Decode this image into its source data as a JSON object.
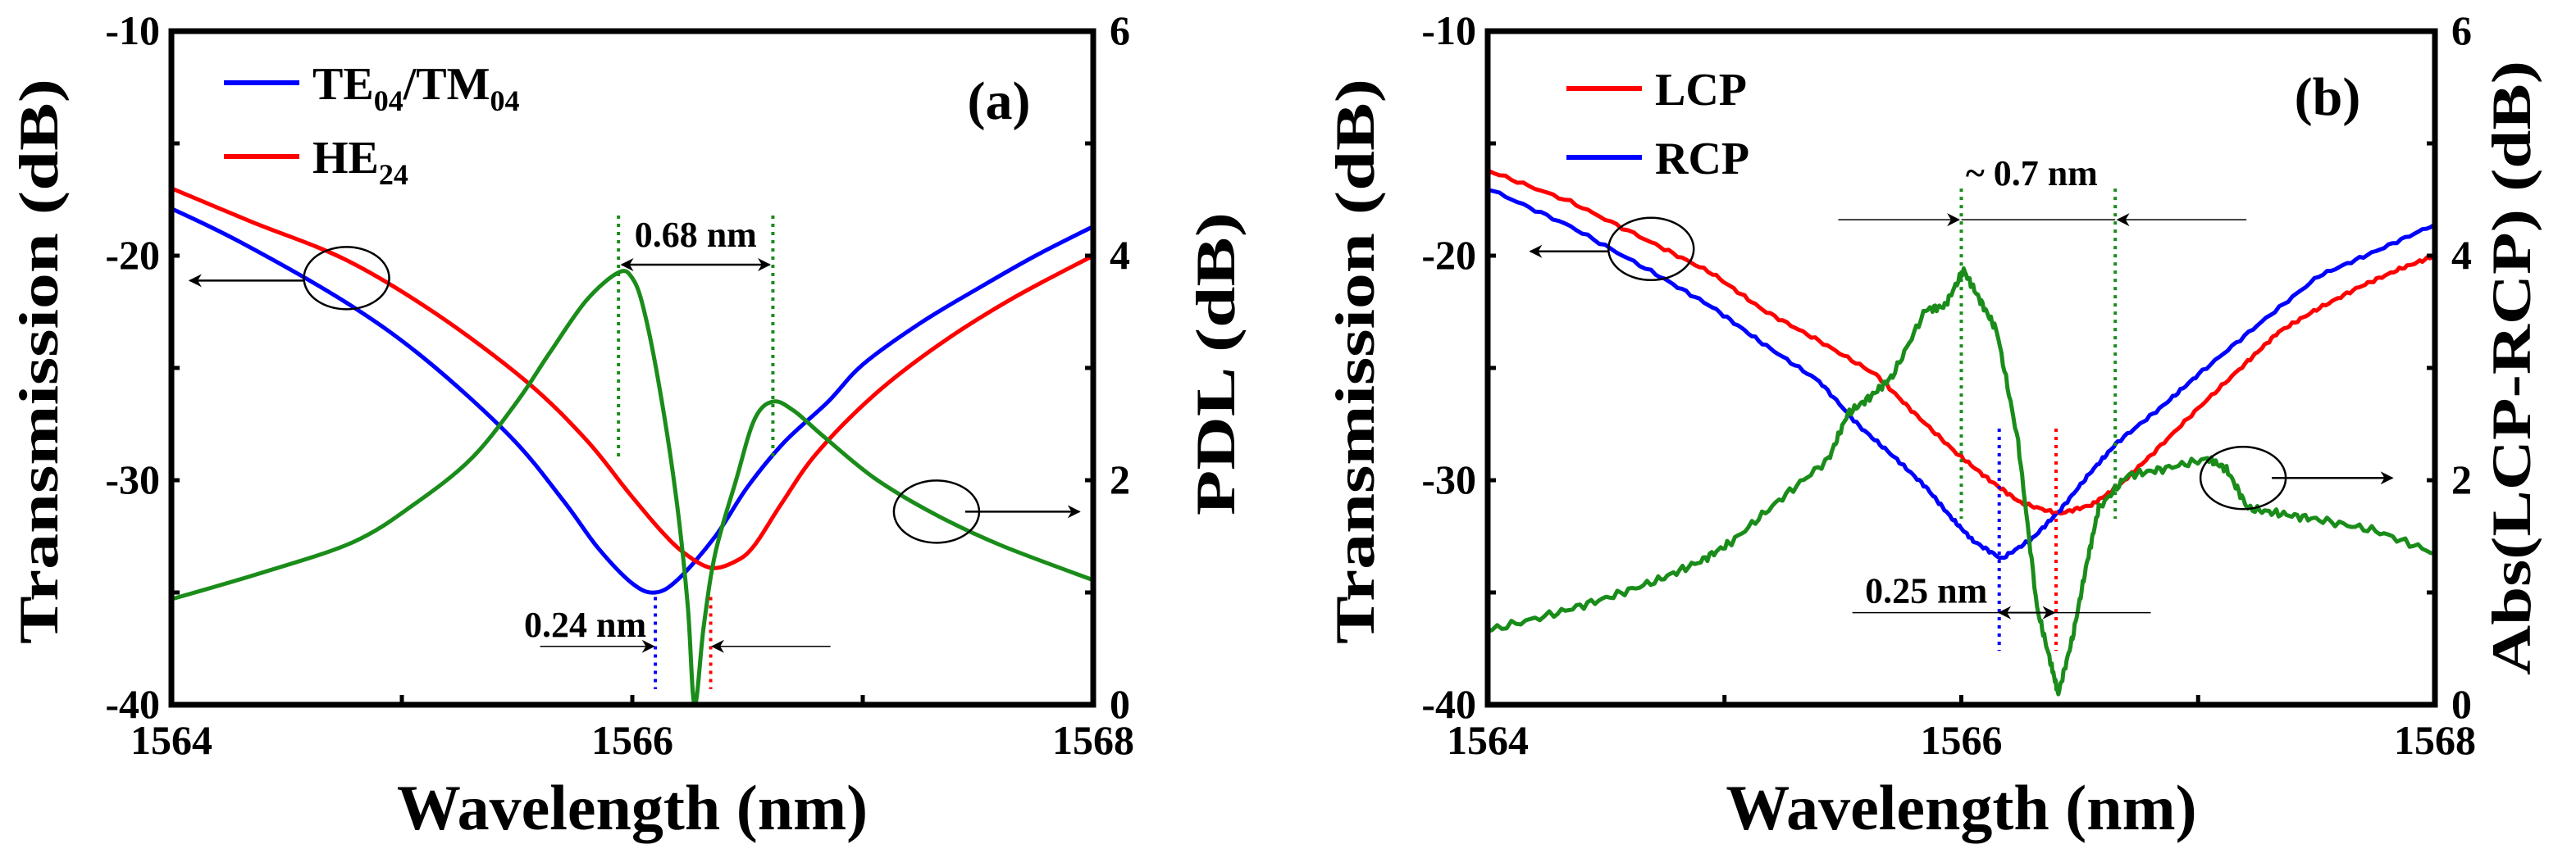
{
  "chart_data": [
    {
      "type": "line",
      "panel_label": "(a)",
      "xlabel": "Wavelength (nm)",
      "ylabel": "Transmission  (dB)",
      "y2label": "PDL  (dB)",
      "xlim": [
        1564,
        1568
      ],
      "ylim": [
        -40,
        -10
      ],
      "y2lim": [
        0,
        6
      ],
      "xticks": [
        1564,
        1566,
        1568
      ],
      "yticks": [
        -40,
        -30,
        -20,
        -10
      ],
      "y2ticks": [
        0,
        2,
        4,
        6
      ],
      "legend_position": "top-left",
      "series": [
        {
          "name_parts": [
            {
              "t": "TE"
            },
            {
              "t": "04",
              "sub": true
            },
            {
              "t": "/TM"
            },
            {
              "t": "04",
              "sub": true
            }
          ],
          "color": "#0000ff",
          "axis": "left",
          "x": [
            1564,
            1564.3,
            1564.76,
            1565.1,
            1565.47,
            1565.7,
            1565.85,
            1566.0,
            1566.1,
            1566.2,
            1566.36,
            1566.5,
            1566.66,
            1566.85,
            1567.0,
            1567.25,
            1567.51,
            1567.75,
            1568
          ],
          "y": [
            -17.9,
            -19.4,
            -22.1,
            -24.6,
            -28.05,
            -30.9,
            -33.0,
            -34.6,
            -35.0,
            -34.4,
            -32.5,
            -30.3,
            -28.3,
            -26.5,
            -24.85,
            -23.0,
            -21.4,
            -20.0,
            -18.7
          ]
        },
        {
          "name_parts": [
            {
              "t": "HE"
            },
            {
              "t": "24",
              "sub": true
            }
          ],
          "color": "#ff0000",
          "axis": "left",
          "x": [
            1564,
            1564.35,
            1564.76,
            1565.15,
            1565.54,
            1565.8,
            1565.98,
            1566.12,
            1566.22,
            1566.34,
            1566.45,
            1566.53,
            1566.65,
            1566.8,
            1567.05,
            1567.34,
            1567.65,
            1568
          ],
          "y": [
            -17.0,
            -18.5,
            -20.2,
            -22.6,
            -25.6,
            -28.2,
            -30.5,
            -32.2,
            -33.2,
            -33.9,
            -33.6,
            -32.9,
            -31.0,
            -28.8,
            -26.2,
            -23.9,
            -21.9,
            -20.0
          ]
        },
        {
          "name": "PDL",
          "color": "#1a8c1a",
          "axis": "right",
          "x": [
            1564,
            1564.4,
            1564.79,
            1565.05,
            1565.3,
            1565.5,
            1565.64,
            1565.8,
            1565.94,
            1566.0,
            1566.05,
            1566.12,
            1566.19,
            1566.24,
            1566.27,
            1566.31,
            1566.36,
            1566.45,
            1566.53,
            1566.61,
            1566.7,
            1566.83,
            1567.05,
            1567.31,
            1567.6,
            1568
          ],
          "y": [
            0.94,
            1.18,
            1.45,
            1.78,
            2.19,
            2.7,
            3.13,
            3.6,
            3.85,
            3.8,
            3.52,
            2.8,
            1.85,
            0.9,
            0.0,
            0.7,
            1.35,
            2.0,
            2.54,
            2.7,
            2.62,
            2.39,
            2.02,
            1.7,
            1.42,
            1.11
          ]
        }
      ],
      "annotations": [
        {
          "text": "0.68 nm",
          "type": "width",
          "x1": 1565.94,
          "x2": 1566.61,
          "y": -20.4,
          "color": "#1a8c1a"
        },
        {
          "text": "0.24 nm",
          "type": "shift",
          "x1": 1566.1,
          "x2": 1566.34,
          "y": -37.4,
          "colors": [
            "#0000ff",
            "#ff0000"
          ]
        }
      ]
    },
    {
      "type": "line",
      "panel_label": "(b)",
      "xlabel": "Wavelength (nm)",
      "ylabel": "Transmission  (dB)",
      "y2label": "Abs(LCP-RCP)  (dB)",
      "xlim": [
        1564,
        1568
      ],
      "ylim": [
        -40,
        -10
      ],
      "y2lim": [
        0,
        6
      ],
      "xticks": [
        1564,
        1566,
        1568
      ],
      "yticks": [
        -40,
        -30,
        -20,
        -10
      ],
      "y2ticks": [
        0,
        2,
        4,
        6
      ],
      "legend_position": "top-left",
      "series": [
        {
          "name_parts": [
            {
              "t": "LCP"
            }
          ],
          "color": "#ff0000",
          "axis": "left",
          "x": [
            1564,
            1564.35,
            1564.69,
            1564.95,
            1565.16,
            1565.4,
            1565.64,
            1565.8,
            1565.98,
            1566.12,
            1566.25,
            1566.41,
            1566.55,
            1566.66,
            1566.8,
            1567.0,
            1567.2,
            1567.34,
            1567.5,
            1567.68,
            1567.85,
            1568
          ],
          "y": [
            -16.2,
            -17.6,
            -19.4,
            -20.8,
            -22.4,
            -23.8,
            -25.3,
            -27.0,
            -28.8,
            -30.0,
            -31.0,
            -31.5,
            -31.1,
            -30.3,
            -28.9,
            -26.8,
            -24.8,
            -23.4,
            -22.4,
            -21.4,
            -20.6,
            -20.0
          ]
        },
        {
          "name_parts": [
            {
              "t": "RCP"
            }
          ],
          "color": "#0000ff",
          "axis": "left",
          "x": [
            1564,
            1564.35,
            1564.69,
            1564.95,
            1565.16,
            1565.4,
            1565.57,
            1565.72,
            1565.85,
            1565.96,
            1566.05,
            1566.17,
            1566.3,
            1566.42,
            1566.55,
            1566.66,
            1566.85,
            1567.0,
            1567.25,
            1567.51,
            1567.75,
            1568
          ],
          "y": [
            -17.0,
            -18.7,
            -20.7,
            -22.3,
            -23.9,
            -25.6,
            -27.6,
            -29.0,
            -30.3,
            -31.7,
            -32.7,
            -33.5,
            -32.6,
            -31.3,
            -29.6,
            -28.3,
            -26.7,
            -25.3,
            -23.1,
            -20.9,
            -19.8,
            -18.6
          ]
        },
        {
          "name": "Abs(LCP-RCP)",
          "color": "#1a8c1a",
          "axis": "right",
          "x": [
            1564,
            1564.28,
            1564.5,
            1564.72,
            1564.9,
            1565.03,
            1565.23,
            1565.44,
            1565.52,
            1565.62,
            1565.71,
            1565.85,
            1565.93,
            1566.01,
            1566.08,
            1566.15,
            1566.24,
            1566.32,
            1566.38,
            1566.41,
            1566.47,
            1566.53,
            1566.58,
            1566.7,
            1566.85,
            1567.04,
            1567.12,
            1567.21,
            1567.35,
            1567.51,
            1567.75,
            1568
          ],
          "y": [
            0.66,
            0.81,
            0.95,
            1.11,
            1.28,
            1.45,
            1.82,
            2.19,
            2.59,
            2.75,
            2.93,
            3.52,
            3.55,
            3.87,
            3.6,
            3.33,
            2.34,
            0.86,
            0.35,
            0.1,
            0.6,
            1.26,
            1.75,
            2.04,
            2.1,
            2.19,
            2.1,
            1.75,
            1.7,
            1.65,
            1.55,
            1.35
          ]
        }
      ],
      "annotations": [
        {
          "text": "~ 0.7 nm",
          "type": "width",
          "x1": 1566.0,
          "x2": 1566.65,
          "y": -18.4,
          "color": "#1a8c1a"
        },
        {
          "text": "0.25 nm",
          "type": "shift",
          "x1": 1566.16,
          "x2": 1566.4,
          "y": -35.9,
          "colors": [
            "#0000ff",
            "#ff0000"
          ]
        }
      ]
    }
  ]
}
